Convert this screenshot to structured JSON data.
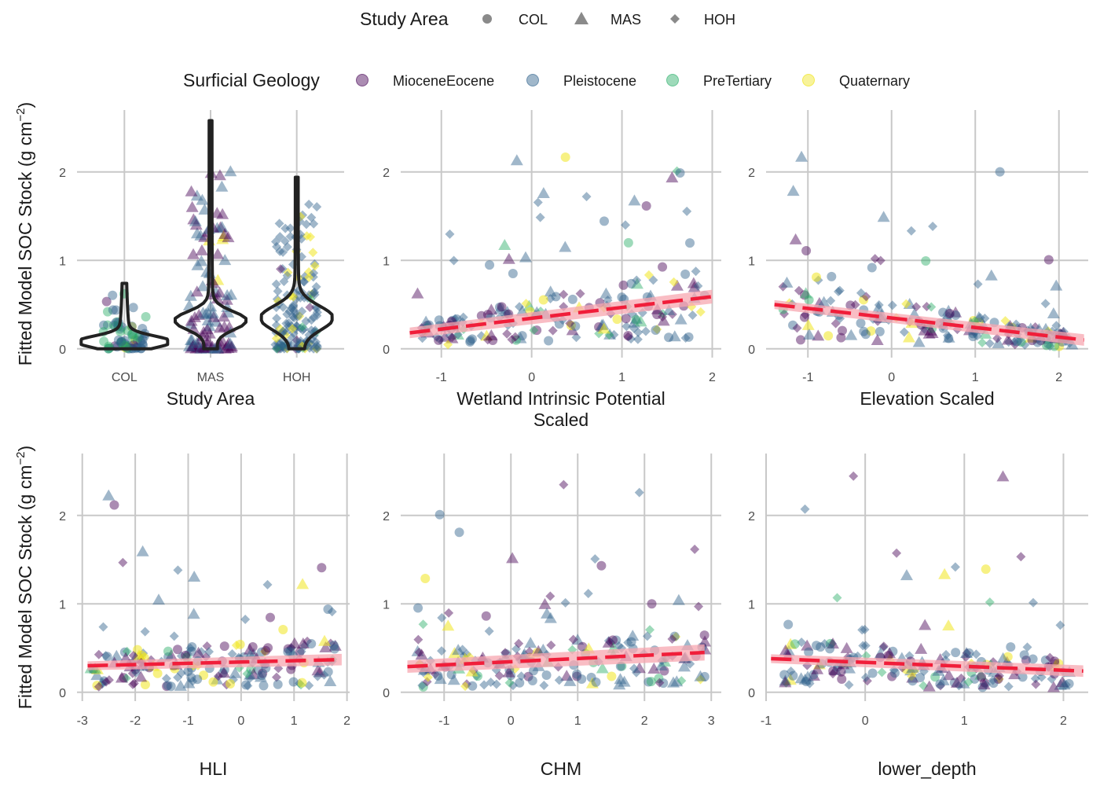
{
  "colors": {
    "MioceneEocene": "#440154",
    "Pleistocene": "#2c5f8a",
    "PreTertiary": "#27ad67",
    "Quaternary": "#f0e51f",
    "trend": "#f01e3a",
    "band": "#f7a7b0",
    "violin": "#222222",
    "grid": "#c8c8c8"
  },
  "legend": {
    "shape_title": "Study Area",
    "shapes": [
      {
        "label": "COL",
        "shape": "circle"
      },
      {
        "label": "MAS",
        "shape": "triangle"
      },
      {
        "label": "HOH",
        "shape": "diamond"
      }
    ],
    "color_title": "Surficial Geology",
    "colors": [
      {
        "label": "MioceneEocene",
        "key": "MioceneEocene"
      },
      {
        "label": "Pleistocene",
        "key": "Pleistocene"
      },
      {
        "label": "PreTertiary",
        "key": "PreTertiary"
      },
      {
        "label": "Quaternary",
        "key": "Quaternary"
      }
    ]
  },
  "y_axis_label_main": "Fitted Model SOC Stock (g cm",
  "y_axis_label_sup": "−2",
  "y_axis_label_end": ")",
  "chart_data": [
    {
      "type": "violin",
      "xlabel": "Study Area",
      "categories": [
        "COL",
        "MAS",
        "HOH"
      ],
      "ylim": [
        -0.1,
        2.7
      ],
      "yticks": [
        0,
        1,
        2
      ],
      "violins": [
        {
          "category": "COL",
          "min": 0.0,
          "max": 0.74,
          "median": 0.08
        },
        {
          "category": "MAS",
          "min": 0.0,
          "max": 2.58,
          "median": 0.32
        },
        {
          "category": "HOH",
          "min": 0.0,
          "max": 1.94,
          "median": 0.35
        }
      ]
    },
    {
      "type": "scatter",
      "xlabel": "Wetland Intrinsic Potential Scaled",
      "xlim": [
        -1.45,
        2.1
      ],
      "ylim": [
        -0.1,
        2.7
      ],
      "xticks": [
        -1,
        0,
        1,
        2
      ],
      "yticks": [
        0,
        1,
        2
      ],
      "trend": {
        "x": [
          -1.35,
          2.0
        ],
        "y": [
          0.18,
          0.59
        ],
        "se": 0.06
      }
    },
    {
      "type": "scatter",
      "xlabel": "Elevation Scaled",
      "xlim": [
        -1.5,
        2.35
      ],
      "ylim": [
        -0.1,
        2.7
      ],
      "xticks": [
        -1,
        0,
        1,
        2
      ],
      "yticks": [
        0,
        1,
        2
      ],
      "trend": {
        "x": [
          -1.4,
          2.3
        ],
        "y": [
          0.5,
          0.1
        ],
        "se": 0.05
      }
    },
    {
      "type": "scatter",
      "xlabel": "HLI",
      "xlim": [
        -3.1,
        2.05
      ],
      "ylim": [
        -0.1,
        2.7
      ],
      "xticks": [
        -3,
        -2,
        -1,
        0,
        1,
        2
      ],
      "yticks": [
        0,
        1,
        2
      ],
      "trend": {
        "x": [
          -2.9,
          1.9
        ],
        "y": [
          0.3,
          0.37
        ],
        "se": 0.05
      }
    },
    {
      "type": "scatter",
      "xlabel": "CHM",
      "xlim": [
        -1.65,
        3.15
      ],
      "ylim": [
        -0.1,
        2.7
      ],
      "xticks": [
        -1,
        0,
        1,
        2,
        3
      ],
      "yticks": [
        0,
        1,
        2
      ],
      "trend": {
        "x": [
          -1.55,
          2.9
        ],
        "y": [
          0.29,
          0.45
        ],
        "se": 0.07
      }
    },
    {
      "type": "scatter",
      "xlabel": "lower_depth",
      "xlim": [
        -1.0,
        2.25
      ],
      "ylim": [
        -0.1,
        2.7
      ],
      "xticks": [
        -1,
        0,
        1,
        2
      ],
      "yticks": [
        0,
        1,
        2
      ],
      "trend": {
        "x": [
          -0.95,
          2.2
        ],
        "y": [
          0.38,
          0.24
        ],
        "se": 0.05
      }
    }
  ]
}
